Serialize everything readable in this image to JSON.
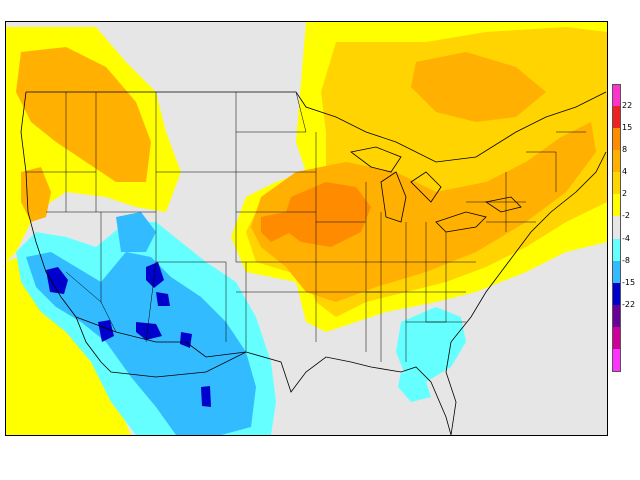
{
  "legend": {
    "bins": [
      {
        "color": "#ff33cc"
      },
      {
        "color": "#ee2222"
      },
      {
        "color": "#ff8c00"
      },
      {
        "color": "#ffb000"
      },
      {
        "color": "#ffd400"
      },
      {
        "color": "#ffff00"
      },
      {
        "color": "#e6e6e6"
      },
      {
        "color": "#66ffff"
      },
      {
        "color": "#33bbff"
      },
      {
        "color": "#0000cc"
      },
      {
        "color": "#660099"
      },
      {
        "color": "#cc0099"
      },
      {
        "color": "#ff33ff"
      }
    ],
    "ticks": [
      "22",
      "15",
      "8",
      "4",
      "2",
      "-2",
      "-4",
      "-8",
      "-15",
      "-22"
    ]
  },
  "map": {
    "background_color": "#e6e6e6",
    "region": "contiguous-united-states",
    "colors": {
      "yellow": "#ffff00",
      "gold": "#ffd400",
      "orange_light": "#ffb000",
      "orange": "#ff8c00",
      "cyan": "#66ffff",
      "blue": "#33bbff",
      "navy": "#0000cc"
    }
  }
}
